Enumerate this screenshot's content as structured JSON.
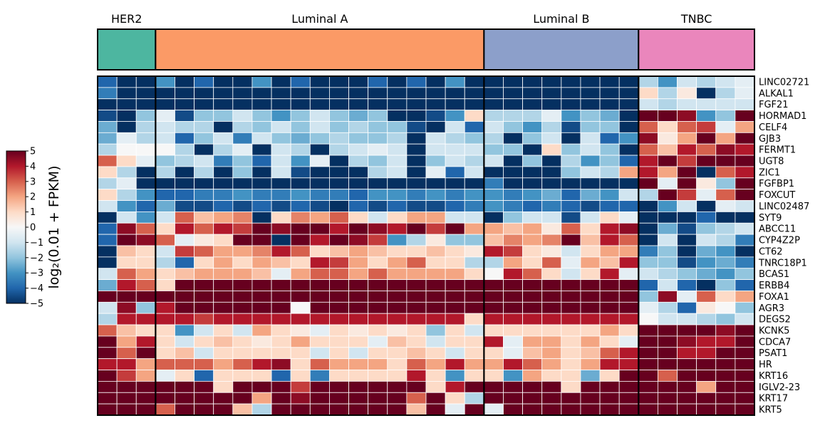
{
  "chart_data": {
    "type": "heatmap",
    "groups": [
      {
        "name": "HER2",
        "n": 3,
        "color": "#4db6a0"
      },
      {
        "name": "Luminal A",
        "n": 17,
        "color": "#fb9a66"
      },
      {
        "name": "Luminal B",
        "n": 8,
        "color": "#8c9fca"
      },
      {
        "name": "TNBC",
        "n": 6,
        "color": "#ea86bc"
      }
    ],
    "rows": [
      "LINC02721",
      "ALKAL1",
      "FGF21",
      "HORMAD1",
      "CELF4",
      "GJB3",
      "FERMT1",
      "UGT8",
      "ZIC1",
      "FGFBP1",
      "FOXCUT",
      "LINC02487",
      "SYT9",
      "ABCC11",
      "CYP4Z2P",
      "CT62",
      "TNRC18P1",
      "BCAS1",
      "ERBB4",
      "FOXA1",
      "AGR3",
      "DEGS2",
      "KCNK5",
      "CDCA7",
      "PSAT1",
      "HR",
      "KRT16",
      "IGLV2-23",
      "KRT17",
      "KRT5"
    ],
    "values": [
      [
        -4,
        -5,
        -5,
        -3,
        -5,
        -4,
        -5,
        -5,
        -3,
        -5,
        -4,
        -5,
        -5,
        -5,
        -4,
        -5,
        -4,
        -5,
        -3,
        -5,
        -5,
        -5,
        -5,
        -5,
        -5,
        -5,
        -5,
        -5,
        -1.5,
        -3,
        -1,
        -1.5,
        -1,
        -0.5
      ],
      [
        -3.5,
        -5,
        -5,
        -5,
        -5,
        -5,
        -5,
        -5,
        -5,
        -5,
        -5,
        -5,
        -5,
        -5,
        -5,
        -5,
        -5,
        -5,
        -5,
        -5,
        -5,
        -5,
        -5,
        -5,
        -5,
        -5,
        -5,
        -5,
        1,
        -1.5,
        0.5,
        -5,
        -1.5,
        -0.5
      ],
      [
        -5,
        -5,
        -5,
        -5,
        -5,
        -5,
        -5,
        -5,
        -5,
        -5,
        -5,
        -5,
        -5,
        -5,
        -5,
        -5,
        -5,
        -5,
        -5,
        -5,
        -5,
        -5,
        -5,
        -5,
        -5,
        -5,
        -5,
        -5,
        -1,
        -1.5,
        -1,
        -1,
        -1,
        -1
      ],
      [
        -4.5,
        -5,
        -2,
        -0.5,
        -4.5,
        -2,
        -2,
        -1,
        -2,
        -3,
        -2,
        -1,
        -2,
        -2.5,
        -2,
        -5,
        -5,
        -4.5,
        -3,
        1,
        -1.5,
        -1.5,
        -1.5,
        -0.5,
        -3,
        -2,
        -2.5,
        -5,
        5,
        5,
        4.5,
        -3,
        -2,
        5
      ],
      [
        -2.5,
        -5,
        -1.5,
        -1,
        -1.5,
        -1.5,
        -5,
        -1.5,
        -2,
        -1,
        -2,
        -1,
        -2,
        -1.5,
        -2,
        -2,
        -4.5,
        -5,
        -1,
        -4,
        -1,
        -2,
        -3,
        -1.5,
        -4.5,
        -2,
        -2,
        -5,
        3,
        1,
        3,
        3.5,
        -0.5,
        2
      ],
      [
        -2.5,
        -0.5,
        -1.5,
        -1,
        -4,
        -2,
        -1,
        -3.5,
        -1,
        -2,
        -2.5,
        -2,
        -1.5,
        -2,
        -2,
        -1.5,
        -5,
        -1,
        -1.5,
        -2,
        -1.5,
        -5,
        -2,
        -1,
        -5,
        -1,
        -4,
        -3,
        4.5,
        0.5,
        2,
        5,
        2,
        5
      ],
      [
        -1.5,
        0,
        0,
        0,
        -1.5,
        -5,
        -1.5,
        -0.5,
        -5,
        -1,
        -1.5,
        -5,
        -1.5,
        -1,
        -0.5,
        -1,
        -5,
        -1,
        -1,
        -1,
        -2,
        -2,
        -5,
        1,
        -2,
        -1,
        -2,
        -5,
        3,
        1.5,
        4,
        3,
        4.5,
        4
      ],
      [
        3,
        1,
        -0.5,
        -2,
        -1.5,
        -1,
        -3.5,
        -2,
        -4,
        -1,
        -3,
        -0.5,
        -5,
        -1.5,
        -2,
        -1,
        -5,
        -2,
        -1,
        -1.5,
        -1,
        -5,
        -2,
        -5,
        -1.5,
        -3,
        -2,
        -4,
        4,
        5,
        3.5,
        5,
        5,
        5
      ],
      [
        1,
        -1.5,
        -5,
        -1.5,
        -5,
        -1.5,
        -5,
        -2,
        -5,
        -1,
        -4.5,
        -5,
        -5,
        -5,
        -1.5,
        -1,
        -5,
        -0.5,
        -4,
        -1,
        -5,
        -5,
        -5,
        -5,
        -2,
        -1,
        -1.5,
        2,
        4,
        2,
        5,
        -5,
        3,
        4
      ],
      [
        -1.5,
        -0.5,
        -5,
        -5,
        -5,
        -5,
        -5,
        -5,
        -5,
        -5,
        -5,
        -5,
        -5,
        -5,
        -5,
        -5,
        -5,
        -5,
        -5,
        -5,
        -3.5,
        -5,
        -5,
        -5,
        -5,
        -5,
        -5,
        -5,
        5,
        -0.5,
        5,
        0.5,
        -2,
        5
      ],
      [
        1,
        -1.5,
        -3,
        -4,
        -4,
        -3.5,
        -3.5,
        -3,
        -3.5,
        -3.5,
        -3,
        -3.5,
        -3.5,
        -4,
        -3,
        -3,
        -3.5,
        -3,
        -3.5,
        -3,
        -3,
        -3.5,
        -3,
        -2.5,
        -4,
        -2.5,
        -3,
        -1,
        -1.5,
        5,
        3.5,
        -0.5,
        3,
        5
      ],
      [
        -1,
        -3,
        -4,
        -2.5,
        -4.5,
        -4.5,
        -4,
        -4.5,
        -4,
        -4.5,
        -4,
        -4.5,
        -5,
        -4,
        -4.5,
        -4,
        -4.5,
        -4.5,
        -4,
        -3.5,
        -3,
        -3.5,
        -4,
        -3.5,
        -4,
        -4.5,
        -4,
        -4,
        -5,
        -3,
        -1,
        -5,
        -0.5,
        -1
      ],
      [
        -5,
        -1,
        -3,
        -1,
        3,
        1.5,
        2,
        2.5,
        -5,
        1,
        2.5,
        2,
        3,
        1,
        -1,
        1,
        2,
        2,
        -1,
        -1,
        -5,
        -2,
        -1,
        -1,
        -4.5,
        -1,
        1,
        -0.5,
        -5,
        -5,
        -5,
        -4,
        -5,
        -5
      ],
      [
        -4,
        4.5,
        3,
        1,
        4,
        3,
        4,
        3.5,
        5,
        4.5,
        5,
        5,
        4,
        5,
        4.5,
        4,
        5,
        3.5,
        5,
        2,
        2,
        1.5,
        2,
        0.5,
        3,
        1,
        4,
        4.5,
        -5,
        -2.5,
        -4.5,
        -2,
        -1.5,
        -1
      ],
      [
        -4,
        5,
        4.5,
        3,
        -0.5,
        0.5,
        1,
        5,
        5,
        -5,
        5,
        4,
        5,
        4.5,
        3.5,
        -3,
        -1.5,
        0.5,
        -2,
        -2,
        1.5,
        2.5,
        2,
        2.5,
        5,
        1.5,
        4,
        3,
        -5,
        -1,
        -5,
        -1,
        -1.5,
        -3.5
      ],
      [
        -5,
        1.5,
        1,
        -1,
        3.5,
        3,
        2,
        2,
        2.5,
        4,
        3,
        1,
        1.5,
        2,
        1.5,
        1,
        1,
        1.5,
        1,
        0.5,
        4,
        3.5,
        1,
        0.5,
        -1,
        1,
        2,
        2,
        -3.5,
        -2,
        -5,
        -2.5,
        -3,
        -5
      ],
      [
        -5,
        1,
        1,
        -1.5,
        -4,
        1,
        2,
        1,
        2,
        1.5,
        1,
        4,
        3.5,
        2,
        1,
        2,
        3,
        1,
        1,
        -1.5,
        -1.5,
        2,
        1,
        3,
        -0.5,
        2,
        1.5,
        4,
        -2,
        -2,
        -4.5,
        -3,
        -2.5,
        -3.5
      ],
      [
        -1,
        3,
        2,
        1,
        1.5,
        2,
        2,
        2,
        1.5,
        -0.5,
        2,
        3,
        3,
        2,
        3,
        2,
        2,
        2,
        2,
        1,
        0,
        4,
        3,
        1,
        -1,
        1,
        4,
        -0.5,
        -1,
        -1.5,
        -2,
        -2.5,
        -3,
        -2
      ],
      [
        -2.5,
        4,
        3,
        1,
        5,
        5,
        5,
        5,
        5,
        5,
        5,
        5,
        5,
        5,
        5,
        5,
        5,
        5,
        5,
        5,
        5,
        5,
        5,
        5,
        5,
        5,
        5,
        5,
        -4,
        -1,
        -4,
        -5,
        -2,
        -4
      ],
      [
        5,
        5,
        5,
        5,
        5,
        5,
        5,
        5,
        5,
        5,
        5,
        5,
        5,
        5,
        5,
        5,
        5,
        5,
        5,
        5,
        5,
        5,
        5,
        5,
        5,
        5,
        5,
        5,
        -2,
        4.5,
        -0.5,
        3,
        1,
        2
      ],
      [
        -1,
        4.5,
        -2,
        4,
        5,
        5,
        5,
        5,
        5,
        5,
        0,
        5,
        5,
        5,
        5,
        5,
        5,
        5,
        5,
        5,
        5,
        5,
        5,
        5,
        5,
        5,
        5,
        5,
        -0.5,
        -1.5,
        -4,
        0.5,
        0,
        -2
      ],
      [
        -1.5,
        4,
        4,
        4,
        4,
        3.5,
        4,
        4,
        4,
        4,
        4,
        4,
        4,
        4,
        4,
        4,
        4,
        4,
        4,
        1,
        4,
        4,
        4,
        4,
        4,
        4,
        4,
        4,
        0,
        -1,
        -1,
        -1.5,
        -2,
        -1
      ],
      [
        3,
        1.5,
        1,
        1,
        -3,
        -1,
        1,
        -1,
        2,
        1,
        0.5,
        -0.5,
        1,
        0.5,
        1,
        0.5,
        1,
        -2,
        1,
        -1,
        1,
        1,
        1,
        1,
        1,
        1,
        2,
        1,
        5,
        5,
        5,
        5,
        4.5,
        5
      ],
      [
        5,
        2,
        4,
        1,
        -1,
        1,
        1.5,
        1,
        0.5,
        1,
        2,
        1,
        1,
        1,
        -0.5,
        1.5,
        1,
        -1,
        1,
        1,
        4,
        -0.5,
        2,
        2,
        1,
        2,
        1,
        -0.5,
        5,
        5,
        4.5,
        4,
        4,
        5
      ],
      [
        5,
        3,
        5,
        1,
        1.5,
        -1,
        1,
        1,
        1,
        1,
        1,
        -1,
        1,
        -1,
        1,
        1,
        1.5,
        1,
        -1,
        1,
        1,
        -0.5,
        1.5,
        2,
        1,
        1.5,
        3,
        4,
        5,
        5,
        4,
        4,
        5,
        5
      ],
      [
        4,
        4,
        2,
        3,
        3,
        3,
        2,
        3,
        4,
        4.5,
        1,
        3,
        2,
        2,
        2,
        1,
        3,
        2,
        4,
        2,
        2,
        4,
        3,
        2,
        1,
        2,
        4,
        4,
        5,
        5,
        5,
        5,
        5,
        5
      ],
      [
        5,
        3.5,
        2,
        -0.5,
        1,
        -4,
        1,
        1,
        1,
        -4,
        1,
        -3.5,
        1,
        1,
        1,
        1,
        4,
        1,
        -3,
        1,
        1,
        -3,
        2,
        1,
        1,
        -2.5,
        1,
        5,
        5,
        3,
        5,
        5,
        5,
        5
      ],
      [
        5,
        5,
        5,
        5,
        5,
        5,
        1,
        5,
        5,
        5,
        3.5,
        5,
        5,
        5,
        5,
        5,
        5,
        1,
        4,
        5,
        5,
        5,
        5,
        5,
        1,
        5,
        5,
        5,
        5,
        5,
        5,
        2,
        5,
        5
      ],
      [
        5,
        5,
        5,
        5,
        5,
        5,
        5,
        5,
        2,
        5,
        4.5,
        5,
        5,
        5,
        5,
        5,
        3,
        5,
        1,
        -1.5,
        5,
        5,
        5,
        5,
        5,
        5,
        5,
        5,
        5,
        5,
        5,
        5,
        5,
        5
      ],
      [
        5,
        5,
        5,
        3,
        5,
        5,
        5,
        1.5,
        -1.5,
        5,
        5,
        5,
        5,
        5,
        5,
        5,
        1.5,
        5,
        -0.5,
        5,
        -0.5,
        5,
        5,
        5,
        5,
        5,
        5,
        5,
        5,
        5,
        5,
        5,
        5,
        5
      ]
    ],
    "colorbar": {
      "range": [
        -5,
        5
      ],
      "ticks": [
        "5",
        "4",
        "3",
        "2",
        "1",
        "0",
        "−1",
        "−2",
        "−3",
        "−4",
        "−5"
      ],
      "label": "log₂(0.01 + FPKM)",
      "colormap": "RdBu_r"
    }
  }
}
